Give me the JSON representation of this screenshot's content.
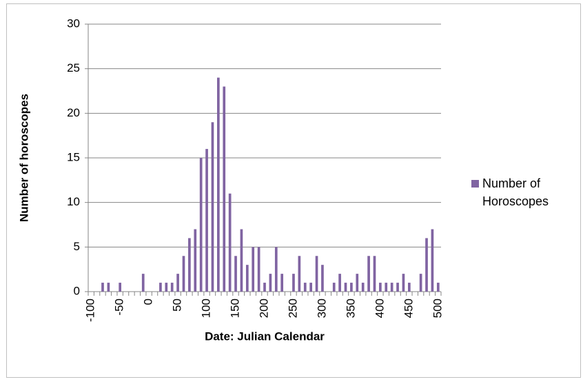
{
  "chart_data": {
    "type": "bar",
    "x_label": "Date: Julian Calendar",
    "y_label": "Number of horoscopes",
    "categories": [
      -100,
      null,
      null,
      null,
      null,
      -50,
      null,
      null,
      null,
      null,
      0,
      null,
      null,
      null,
      null,
      50,
      null,
      null,
      null,
      null,
      100,
      null,
      null,
      null,
      null,
      150,
      null,
      null,
      null,
      null,
      200,
      null,
      null,
      null,
      null,
      250,
      null,
      null,
      null,
      null,
      300,
      null,
      null,
      null,
      null,
      350,
      null,
      null,
      null,
      null,
      400,
      null,
      null,
      null,
      null,
      450,
      null,
      null,
      null,
      null,
      500
    ],
    "series": [
      {
        "name": "Number of Horoscopes",
        "color": "#8064a2",
        "values": [
          0,
          0,
          1,
          1,
          0,
          1,
          0,
          0,
          0,
          2,
          0,
          0,
          1,
          1,
          1,
          2,
          4,
          6,
          7,
          15,
          16,
          19,
          24,
          23,
          11,
          4,
          7,
          3,
          5,
          5,
          1,
          2,
          5,
          2,
          0,
          2,
          4,
          1,
          1,
          4,
          3,
          0,
          1,
          2,
          1,
          1,
          2,
          1,
          4,
          4,
          1,
          1,
          1,
          1,
          2,
          1,
          0,
          2,
          6,
          7,
          1
        ]
      }
    ],
    "ylim": [
      0,
      30
    ],
    "yticks": [
      0,
      5,
      10,
      15,
      20,
      25,
      30
    ],
    "grid": true,
    "legend": "right"
  }
}
